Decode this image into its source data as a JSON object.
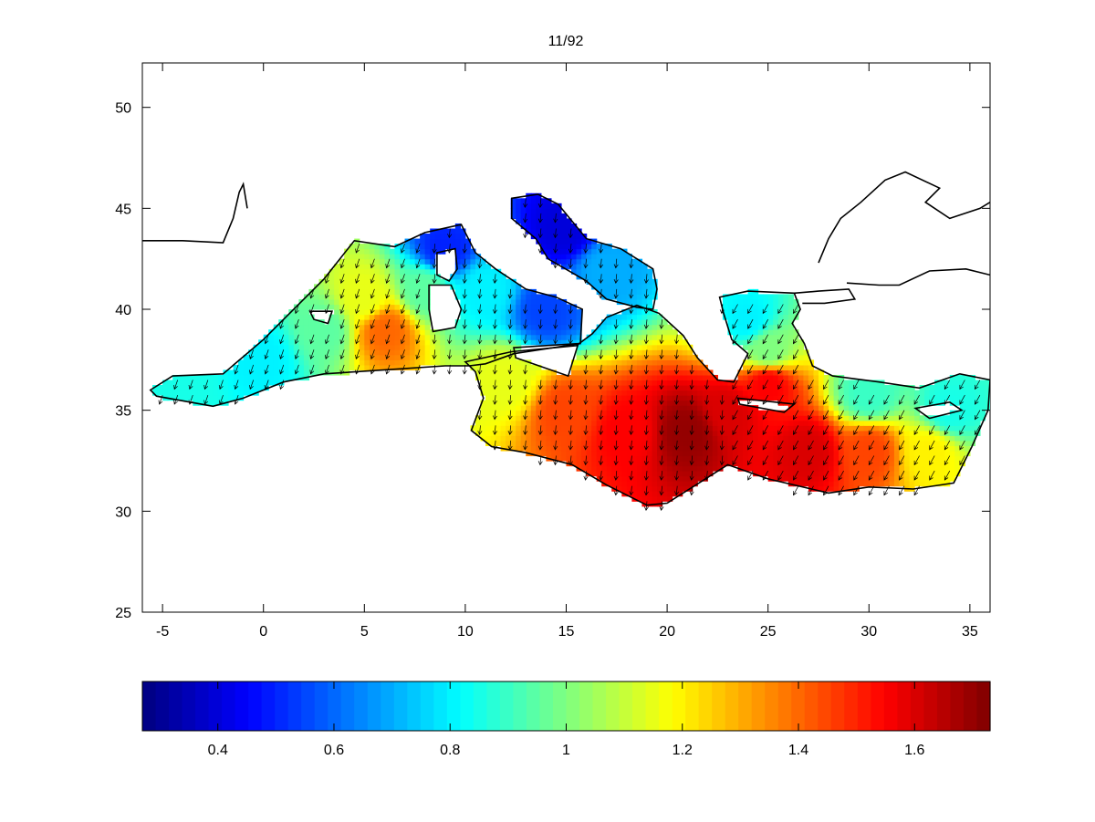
{
  "figure": {
    "title": "11/92"
  },
  "map": {
    "type": "heatmap",
    "xlim": [
      -6,
      36
    ],
    "ylim": [
      25,
      52.2
    ],
    "xticks": [
      -5,
      0,
      5,
      10,
      15,
      20,
      25,
      30,
      35
    ],
    "yticks": [
      25,
      30,
      35,
      40,
      45,
      50
    ],
    "xtick_labels": [
      "-5",
      "0",
      "5",
      "10",
      "15",
      "20",
      "25",
      "30",
      "35"
    ],
    "ytick_labels": [
      "25",
      "30",
      "35",
      "40",
      "45",
      "50"
    ],
    "field": "filled color grid with vector arrows over the Mediterranean Sea",
    "coastline_color": "#000000",
    "arrow_color": "#000000",
    "approx_max_region": "central Mediterranean south of Greece (~20-23E, 33-35N)"
  },
  "colorbar": {
    "colormap": "jet",
    "range": [
      0.27,
      1.73
    ],
    "tick_values": [
      0.4,
      0.6,
      0.8,
      1,
      1.2,
      1.4,
      1.6
    ],
    "tick_labels": [
      "0.4",
      "0.6",
      "0.8",
      "1",
      "1.2",
      "1.4",
      "1.6"
    ]
  },
  "chart_data": {
    "type": "heatmap",
    "title": "11/92",
    "xlabel": "",
    "ylabel": "",
    "xlim": [
      -6,
      36
    ],
    "ylim": [
      25,
      52.2
    ],
    "color_range": [
      0.27,
      1.73
    ],
    "colormap": "jet",
    "note_values": "Approximate cell values read from color (lon, lat, value)",
    "samples": [
      {
        "lon": -4,
        "lat": 36,
        "value": 0.85
      },
      {
        "lon": 0,
        "lat": 37.5,
        "value": 0.8
      },
      {
        "lon": 3,
        "lat": 39,
        "value": 0.95
      },
      {
        "lon": 5,
        "lat": 40.5,
        "value": 1.15
      },
      {
        "lon": 6,
        "lat": 39,
        "value": 1.4
      },
      {
        "lon": 8,
        "lat": 41,
        "value": 0.95
      },
      {
        "lon": 9,
        "lat": 43,
        "value": 0.5
      },
      {
        "lon": 11,
        "lat": 41,
        "value": 0.8
      },
      {
        "lon": 14,
        "lat": 40,
        "value": 0.55
      },
      {
        "lon": 15,
        "lat": 44,
        "value": 0.4
      },
      {
        "lon": 17,
        "lat": 42,
        "value": 0.7
      },
      {
        "lon": 12,
        "lat": 36.5,
        "value": 1.15
      },
      {
        "lon": 15,
        "lat": 35,
        "value": 1.45
      },
      {
        "lon": 18,
        "lat": 34,
        "value": 1.55
      },
      {
        "lon": 21,
        "lat": 34,
        "value": 1.7
      },
      {
        "lon": 23,
        "lat": 35,
        "value": 1.6
      },
      {
        "lon": 25,
        "lat": 36.3,
        "value": 1.55
      },
      {
        "lon": 25,
        "lat": 38,
        "value": 1.0
      },
      {
        "lon": 24,
        "lat": 39.5,
        "value": 0.8
      },
      {
        "lon": 27,
        "lat": 33,
        "value": 1.6
      },
      {
        "lon": 30,
        "lat": 33,
        "value": 1.45
      },
      {
        "lon": 33,
        "lat": 33,
        "value": 1.2
      },
      {
        "lon": 34,
        "lat": 35,
        "value": 0.85
      },
      {
        "lon": 30,
        "lat": 35.8,
        "value": 0.9
      }
    ]
  }
}
